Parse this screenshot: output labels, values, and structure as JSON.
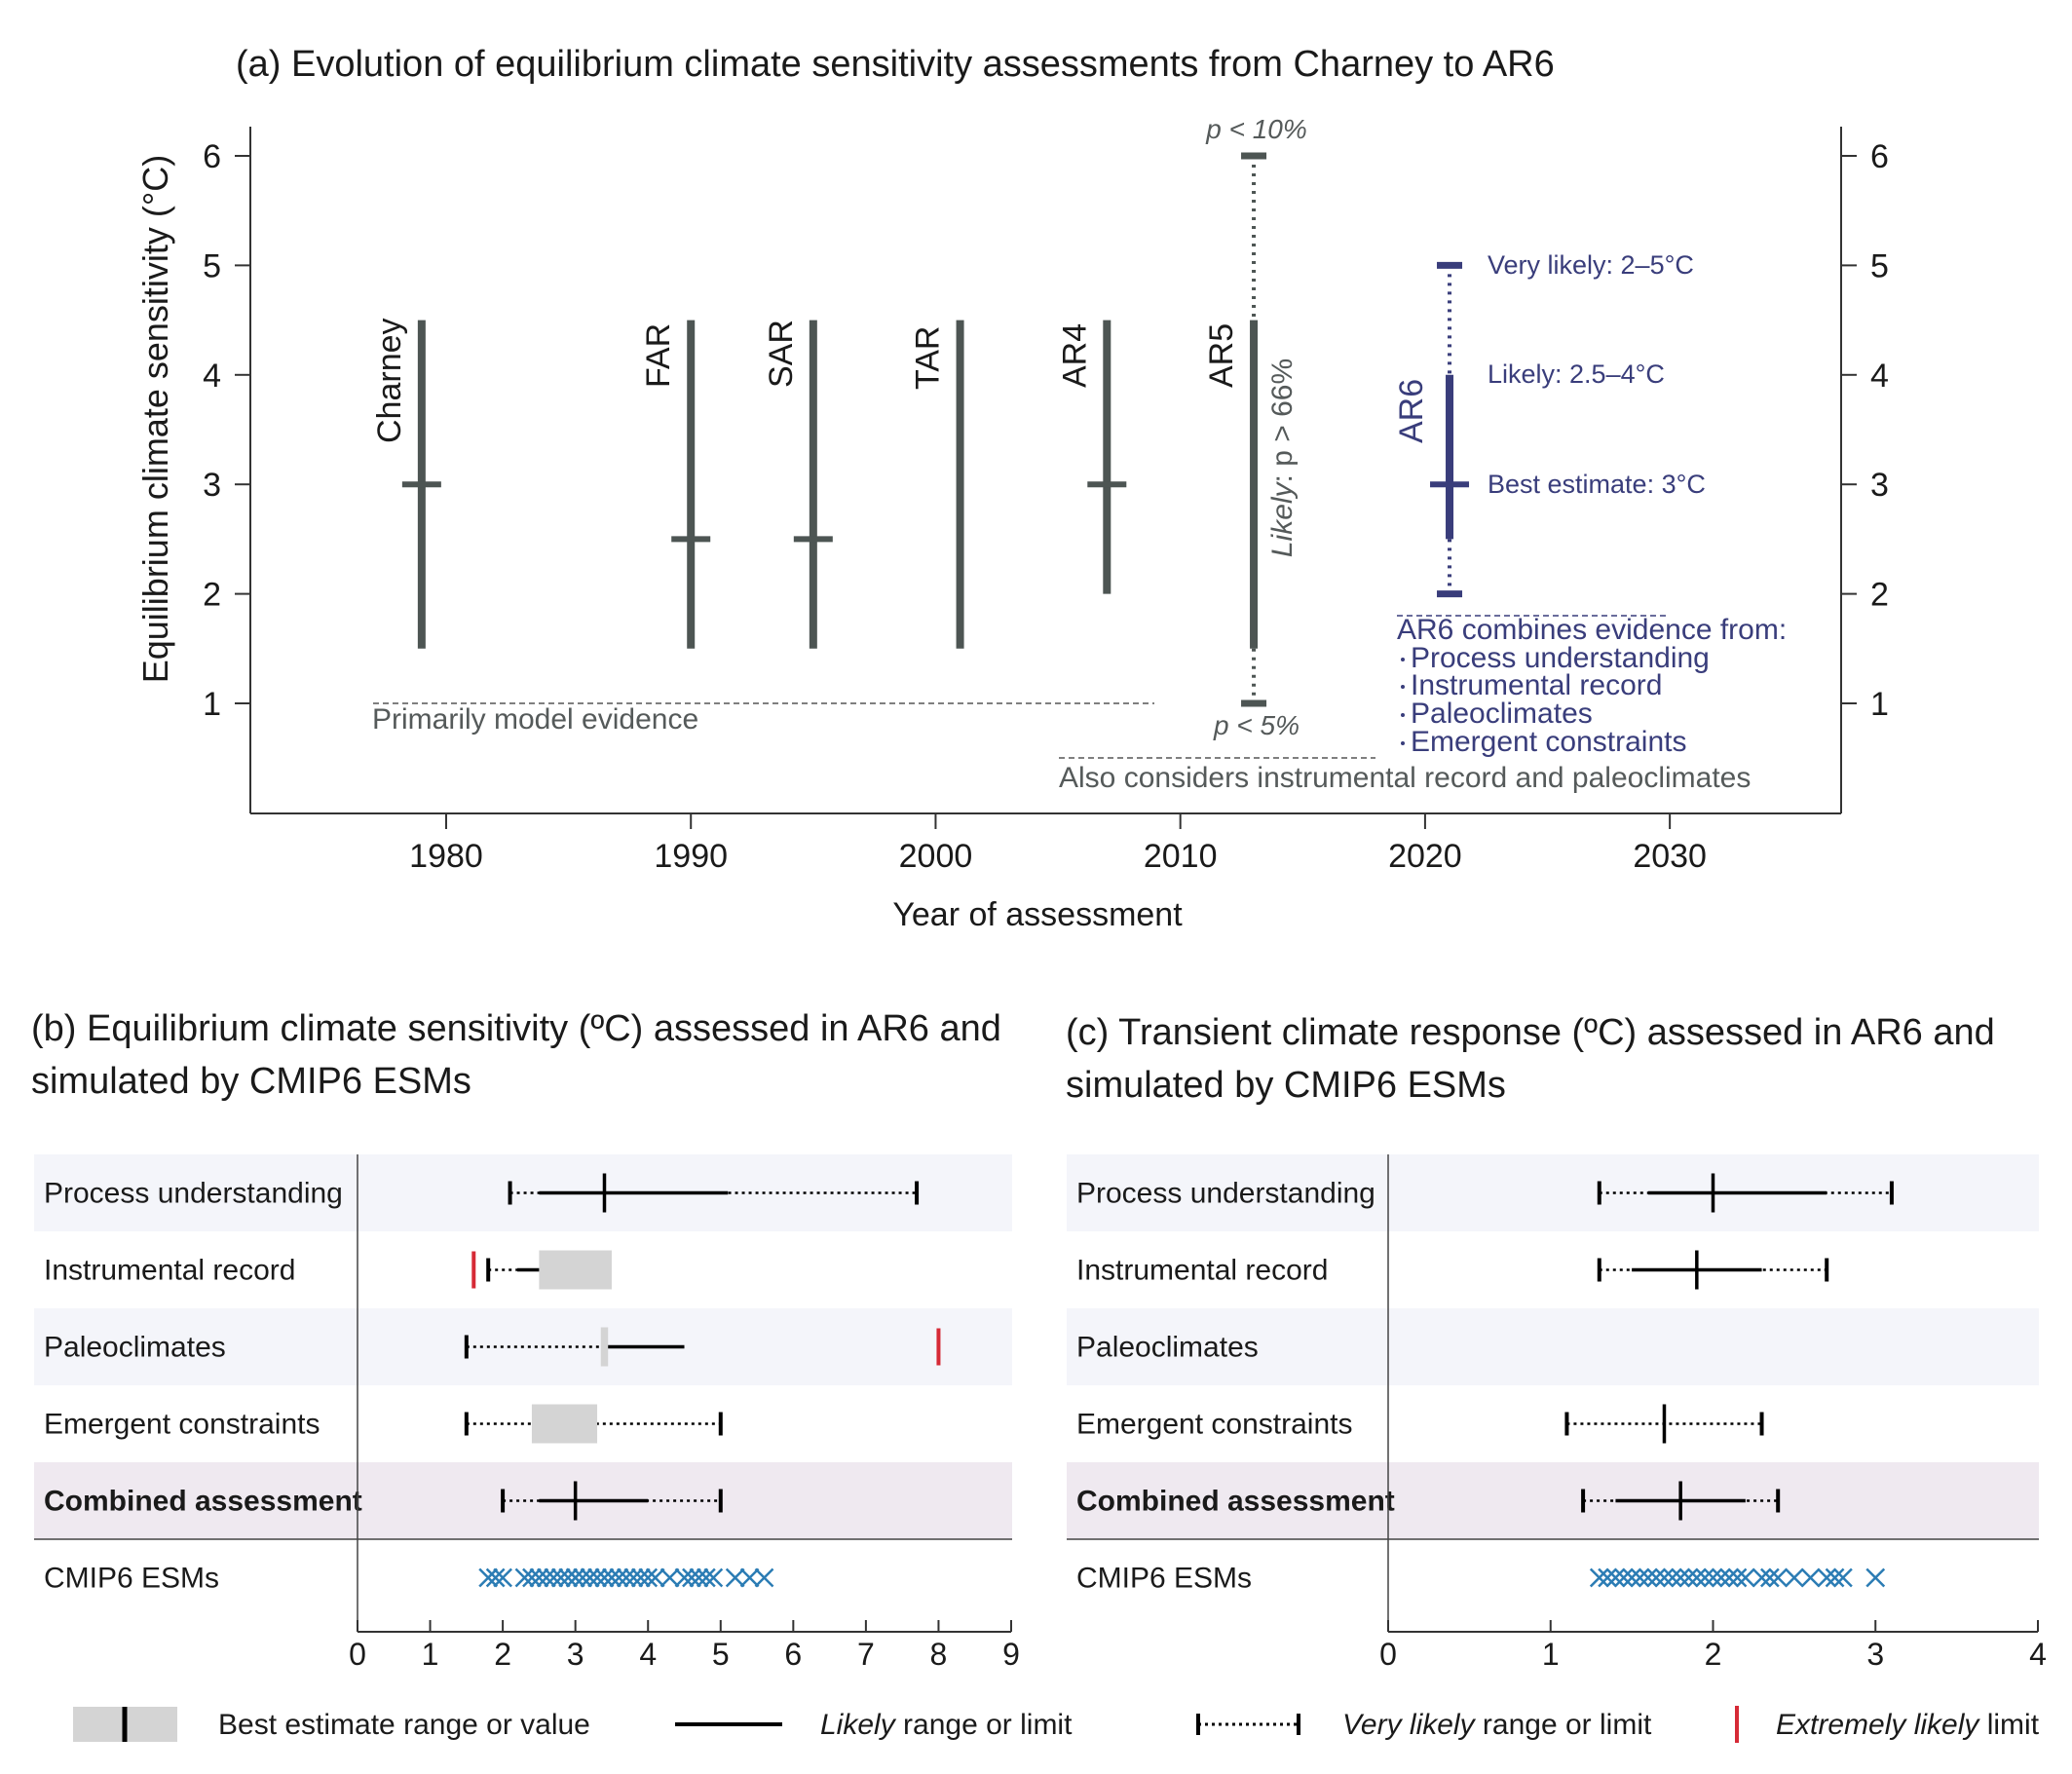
{
  "panel_a": {
    "title": "(a) Evolution of equilibrium climate sensitivity assessments from Charney to AR6",
    "ylabel": "Equilibrium climate sensitivity (°C)",
    "xlabel": "Year of assessment",
    "p_upper": "p < 10%",
    "p_lower": "p < 5%",
    "likely_note_italic": "Likely",
    "likely_note_rest": ": p > 66%",
    "ar6_very_likely": "Very likely:  2–5°C",
    "ar6_likely": "Likely:  2.5–4°C",
    "ar6_best": "Best estimate:  3°C",
    "model_evidence": "Primarily model evidence",
    "instrumental_note": "Also considers instrumental record and paleoclimates",
    "ar6_combines": {
      "heading": "AR6 combines evidence from:",
      "items": [
        "Process understanding",
        "Instrumental record",
        "Paleoclimates",
        "Emergent constraints"
      ]
    }
  },
  "panel_b": {
    "title_line1": "(b) Equilibrium climate sensitivity (ºC) assessed in AR6 and",
    "title_line2": "simulated by CMIP6 ESMs"
  },
  "panel_c": {
    "title_line1": "(c) Transient climate response (ºC) assessed in AR6 and",
    "title_line2": "simulated by CMIP6 ESMs"
  },
  "legend": {
    "best": "Best estimate range or value",
    "likely_italic": "Likely",
    "likely_rest": " range or limit",
    "very_likely_italic": "Very likely",
    "very_likely_rest": " range or limit",
    "extremely_italic": "Extremely likely",
    "extremely_rest": " limit"
  },
  "colors": {
    "bar": "#4d5553",
    "ar6": "#393d7b",
    "red": "#d62a36",
    "esm": "#2b7cb4",
    "grey_box": "#d4d4d4",
    "row_blue": "#f4f5fa",
    "row_purple": "#efe9f0",
    "text_grey": "#555a5a"
  },
  "chart_data": [
    {
      "type": "line",
      "title": "(a) Evolution of equilibrium climate sensitivity assessments from Charney to AR6",
      "xlabel": "Year of assessment",
      "ylabel": "Equilibrium climate sensitivity (°C)",
      "xlim": [
        1972,
        2037
      ],
      "ylim": [
        0,
        6
      ],
      "xticks": [
        1980,
        1990,
        2000,
        2010,
        2020,
        2030
      ],
      "yticks": [
        1,
        2,
        3,
        4,
        5,
        6
      ],
      "assessments": [
        {
          "name": "Charney",
          "year": 1979,
          "low": 1.5,
          "high": 4.5,
          "best": 3
        },
        {
          "name": "FAR",
          "year": 1990,
          "low": 1.5,
          "high": 4.5,
          "best": 2.5
        },
        {
          "name": "SAR",
          "year": 1995,
          "low": 1.5,
          "high": 4.5,
          "best": 2.5
        },
        {
          "name": "TAR",
          "year": 2001,
          "low": 1.5,
          "high": 4.5,
          "best": null
        },
        {
          "name": "AR4",
          "year": 2007,
          "low": 2,
          "high": 4.5,
          "best": 3
        },
        {
          "name": "AR5",
          "year": 2013,
          "low": 1.5,
          "high": 4.5,
          "best": null,
          "very_low": 1,
          "very_high": 6
        },
        {
          "name": "AR6",
          "year": 2021,
          "low": 2.5,
          "high": 4,
          "best": 3,
          "very_low": 2,
          "very_high": 5
        }
      ]
    },
    {
      "type": "table",
      "title": "(b) Equilibrium climate sensitivity (ºC) assessed in AR6 and simulated by CMIP6 ESMs",
      "xlim": [
        0,
        9
      ],
      "xticks": [
        0,
        1,
        2,
        3,
        4,
        5,
        6,
        7,
        8,
        9
      ],
      "rows": [
        {
          "label": "Process understanding",
          "very_likely": [
            2.1,
            7.7
          ],
          "likely": [
            2.5,
            5.1
          ],
          "best_value": 3.4
        },
        {
          "label": "Instrumental record",
          "extremely_likely_low": 1.6,
          "very_likely_low": 1.8,
          "likely_low": 2.2,
          "best_range": [
            2.5,
            3.5
          ]
        },
        {
          "label": "Paleoclimates",
          "very_likely_low": 1.5,
          "best_range": [
            3.35,
            3.45
          ],
          "likely_high": 4.5,
          "extremely_likely_high": 8
        },
        {
          "label": "Emergent constraints",
          "very_likely": [
            1.5,
            5
          ],
          "best_range": [
            2.4,
            3.3
          ]
        },
        {
          "label": "Combined assessment",
          "very_likely": [
            2,
            5
          ],
          "likely": [
            2.5,
            4
          ],
          "best_value": 3
        },
        {
          "label": "CMIP6 ESMs",
          "esm_values": [
            1.8,
            1.9,
            2.0,
            2.3,
            2.4,
            2.5,
            2.6,
            2.7,
            2.8,
            2.9,
            3.0,
            3.0,
            3.1,
            3.2,
            3.2,
            3.3,
            3.4,
            3.5,
            3.6,
            3.7,
            3.8,
            3.9,
            4.0,
            4.1,
            4.3,
            4.5,
            4.6,
            4.7,
            4.8,
            4.9,
            5.2,
            5.4,
            5.6
          ]
        }
      ]
    },
    {
      "type": "table",
      "title": "(c) Transient climate response (ºC) assessed in AR6 and simulated by CMIP6 ESMs",
      "xlim": [
        0,
        4
      ],
      "xticks": [
        0,
        1,
        2,
        3,
        4
      ],
      "rows": [
        {
          "label": "Process understanding",
          "very_likely": [
            1.3,
            3.1
          ],
          "likely": [
            1.6,
            2.7
          ],
          "best_value": 2.0
        },
        {
          "label": "Instrumental record",
          "very_likely": [
            1.3,
            2.7
          ],
          "likely": [
            1.5,
            2.3
          ],
          "best_value": 1.9
        },
        {
          "label": "Paleoclimates"
        },
        {
          "label": "Emergent constraints",
          "very_likely": [
            1.1,
            2.3
          ],
          "best_value": 1.7
        },
        {
          "label": "Combined assessment",
          "very_likely": [
            1.2,
            2.4
          ],
          "likely": [
            1.4,
            2.2
          ],
          "best_value": 1.8
        },
        {
          "label": "CMIP6 ESMs",
          "esm_values": [
            1.3,
            1.35,
            1.4,
            1.45,
            1.5,
            1.55,
            1.6,
            1.65,
            1.7,
            1.75,
            1.8,
            1.85,
            1.9,
            1.95,
            2.0,
            2.05,
            2.1,
            2.15,
            2.2,
            2.3,
            2.35,
            2.4,
            2.5,
            2.6,
            2.7,
            2.75,
            2.8,
            3.0
          ]
        }
      ]
    }
  ]
}
